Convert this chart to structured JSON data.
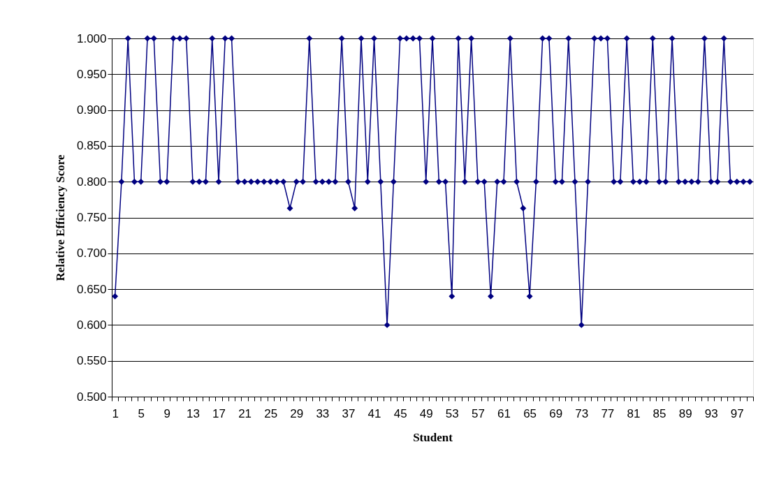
{
  "chart_data": {
    "type": "line",
    "xlabel": "Student",
    "ylabel": "Relative Efficiency Score",
    "categories": [
      "1",
      null,
      null,
      null,
      "5",
      null,
      null,
      null,
      "9",
      null,
      null,
      null,
      "13",
      null,
      null,
      null,
      "17",
      null,
      null,
      null,
      "21",
      null,
      null,
      null,
      "25",
      null,
      null,
      null,
      "29",
      null,
      null,
      null,
      "33",
      null,
      null,
      null,
      "37",
      null,
      null,
      null,
      "41",
      null,
      null,
      null,
      "45",
      null,
      null,
      null,
      "49",
      null,
      null,
      null,
      "53",
      null,
      null,
      null,
      "57",
      null,
      null,
      null,
      "61",
      null,
      null,
      null,
      "65",
      null,
      null,
      null,
      "69",
      null,
      null,
      null,
      "73",
      null,
      null,
      null,
      "77",
      null,
      null,
      null,
      "81",
      null,
      null,
      null,
      "85",
      null,
      null,
      null,
      "89",
      null,
      null,
      null,
      "93",
      null,
      null,
      null,
      "97",
      null,
      null
    ],
    "series": [
      {
        "color": "#000080",
        "values": [
          0.64,
          0.8,
          1,
          0.8,
          0.8,
          1,
          1,
          0.8,
          0.8,
          1,
          1,
          1,
          0.8,
          0.8,
          0.8,
          1,
          0.8,
          1,
          1,
          0.8,
          0.8,
          0.8,
          0.8,
          0.8,
          0.8,
          0.8,
          0.8,
          0.763,
          0.8,
          0.8,
          1,
          0.8,
          0.8,
          0.8,
          0.8,
          1,
          0.8,
          0.763,
          1,
          0.8,
          1,
          0.8,
          0.6,
          0.8,
          1,
          1,
          1,
          1,
          0.8,
          1,
          0.8,
          0.8,
          0.64,
          1,
          0.8,
          1,
          0.8,
          0.8,
          0.64,
          0.8,
          0.8,
          1,
          0.8,
          0.763,
          0.64,
          0.8,
          1,
          1,
          0.8,
          0.8,
          1,
          0.8,
          0.6,
          0.8,
          1,
          1,
          1,
          0.8,
          0.8,
          1,
          0.8,
          0.8,
          0.8,
          1,
          0.8,
          0.8,
          1,
          0.8,
          0.8,
          0.8,
          0.8,
          1,
          0.8,
          0.8,
          1,
          0.8,
          0.8,
          0.8,
          0.8
        ]
      }
    ],
    "ylim": [
      0.5,
      1.0
    ],
    "yticks": [
      {
        "value": 0.5,
        "label": "0.500"
      },
      {
        "value": 0.55,
        "label": "0.550"
      },
      {
        "value": 0.6,
        "label": "0.600"
      },
      {
        "value": 0.65,
        "label": "0.650"
      },
      {
        "value": 0.7,
        "label": "0.700"
      },
      {
        "value": 0.75,
        "label": "0.750"
      },
      {
        "value": 0.8,
        "label": "0.800"
      },
      {
        "value": 0.85,
        "label": "0.850"
      },
      {
        "value": 0.9,
        "label": "0.900"
      },
      {
        "value": 0.95,
        "label": "0.950"
      },
      {
        "value": 1.0,
        "label": "1.000"
      }
    ],
    "grid": "y",
    "marker": "diamond",
    "line_style": "solid"
  }
}
